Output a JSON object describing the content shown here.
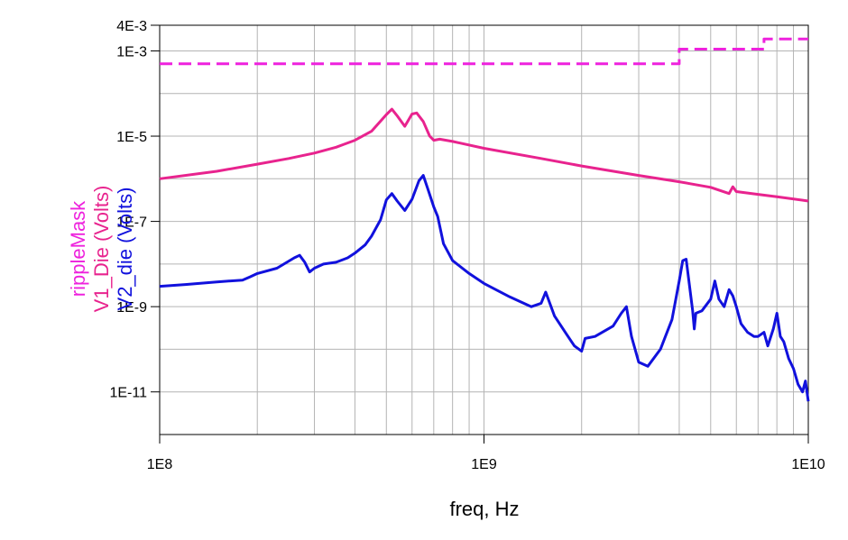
{
  "chart_data": {
    "type": "line",
    "title": "",
    "xlabel": "freq, Hz",
    "x_scale": "log",
    "y_scale": "log",
    "xlim": [
      100000000,
      10000000000
    ],
    "ylim": [
      1e-12,
      0.004
    ],
    "grid": true,
    "x_ticks": [
      {
        "value": 100000000,
        "label": "1E8"
      },
      {
        "value": 1000000000,
        "label": "1E9"
      },
      {
        "value": 10000000000,
        "label": "1E10"
      }
    ],
    "y_ticks": [
      {
        "value": 0.004,
        "label": "4E-3"
      },
      {
        "value": 0.001,
        "label": "1E-3"
      },
      {
        "value": 1e-05,
        "label": "1E-5"
      },
      {
        "value": 1e-07,
        "label": "1E-7"
      },
      {
        "value": 1e-09,
        "label": "1E-9"
      },
      {
        "value": 1e-11,
        "label": "1E-11"
      }
    ],
    "series": [
      {
        "name": "rippleMask",
        "color": "#ee22dd",
        "dash": true,
        "x": [
          100000000,
          4000000000,
          4000000000,
          7300000000,
          7300000000,
          10000000000
        ],
        "y": [
          0.0005,
          0.0005,
          0.0011,
          0.0011,
          0.0019,
          0.0019
        ]
      },
      {
        "name": "V1_Die (Volts)",
        "color": "#e8238e",
        "dash": false,
        "x": [
          100000000,
          150000000,
          200000000,
          250000000,
          300000000,
          350000000,
          400000000,
          450000000,
          500000000,
          520000000,
          540000000,
          570000000,
          600000000,
          620000000,
          650000000,
          680000000,
          700000000,
          730000000,
          800000000,
          1000000000,
          1500000000,
          2000000000,
          3000000000,
          4000000000,
          5000000000,
          5700000000,
          5850000000,
          6000000000,
          7000000000,
          8000000000,
          10000000000
        ],
        "y": [
          1e-06,
          1.5e-06,
          2.2e-06,
          3e-06,
          4e-06,
          5.5e-06,
          8e-06,
          1.3e-05,
          3.2e-05,
          4.3e-05,
          3e-05,
          1.7e-05,
          3.3e-05,
          3.5e-05,
          2.2e-05,
          1e-05,
          8e-06,
          8.5e-06,
          7.5e-06,
          5.2e-06,
          3e-06,
          2e-06,
          1.2e-06,
          8.5e-07,
          6.3e-07,
          4.5e-07,
          6.5e-07,
          5e-07,
          4.3e-07,
          3.8e-07,
          3e-07
        ]
      },
      {
        "name": "V2_die (Volts)",
        "color": "#1111dd",
        "dash": false,
        "x": [
          100000000,
          120000000,
          150000000,
          180000000,
          190000000,
          200000000,
          230000000,
          260000000,
          270000000,
          280000000,
          290000000,
          300000000,
          320000000,
          350000000,
          380000000,
          400000000,
          430000000,
          450000000,
          480000000,
          500000000,
          520000000,
          540000000,
          570000000,
          600000000,
          630000000,
          650000000,
          670000000,
          700000000,
          720000000,
          750000000,
          800000000,
          900000000,
          1000000000,
          1200000000,
          1400000000,
          1500000000,
          1550000000,
          1650000000,
          1800000000,
          1900000000,
          2000000000,
          2050000000,
          2200000000,
          2500000000,
          2650000000,
          2750000000,
          2850000000,
          3000000000,
          3200000000,
          3500000000,
          3800000000,
          4000000000,
          4100000000,
          4200000000,
          4400000000,
          4450000000,
          4500000000,
          4700000000,
          5000000000,
          5150000000,
          5300000000,
          5500000000,
          5700000000,
          5850000000,
          6000000000,
          6200000000,
          6500000000,
          6800000000,
          7000000000,
          7300000000,
          7500000000,
          7800000000,
          8000000000,
          8200000000,
          8400000000,
          8700000000,
          9000000000,
          9300000000,
          9600000000,
          9800000000,
          10000000000
        ],
        "y": [
          3e-09,
          3.3e-09,
          3.8e-09,
          4.2e-09,
          5e-09,
          6e-09,
          8e-09,
          1.4e-08,
          1.6e-08,
          1.1e-08,
          6.5e-09,
          8e-09,
          1e-08,
          1.1e-08,
          1.4e-08,
          1.8e-08,
          2.8e-08,
          4.5e-08,
          1.1e-07,
          3.2e-07,
          4.5e-07,
          3e-07,
          1.8e-07,
          3.3e-07,
          9e-07,
          1.2e-06,
          6e-07,
          2.2e-07,
          1.3e-07,
          3e-08,
          1.2e-08,
          6e-09,
          3.5e-09,
          1.7e-09,
          1e-09,
          1.2e-09,
          2.2e-09,
          6e-10,
          2.2e-10,
          1.2e-10,
          9e-11,
          1.8e-10,
          2e-10,
          3.5e-10,
          7e-10,
          1e-09,
          2e-10,
          5e-11,
          4e-11,
          1e-10,
          5e-10,
          4e-09,
          1.2e-08,
          1.3e-08,
          8e-10,
          3e-10,
          7e-10,
          8e-10,
          1.5e-09,
          4e-09,
          1.5e-09,
          1e-09,
          2.5e-09,
          1.8e-09,
          1e-09,
          4e-10,
          2.5e-10,
          2e-10,
          2e-10,
          2.5e-10,
          1.2e-10,
          3e-10,
          7e-10,
          2e-10,
          1.5e-10,
          6e-11,
          3.5e-11,
          1.5e-11,
          1e-11,
          1.8e-11,
          6e-12
        ]
      }
    ]
  }
}
